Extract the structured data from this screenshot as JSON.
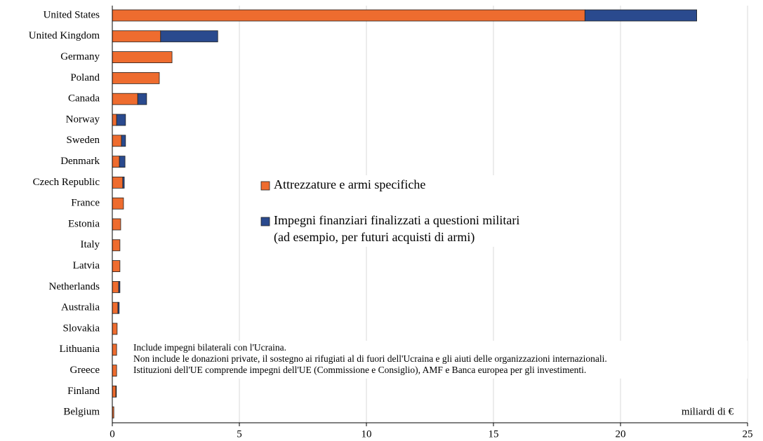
{
  "chart_data": {
    "type": "bar",
    "orientation": "horizontal",
    "stacked": true,
    "categories": [
      "United States",
      "United Kingdom",
      "Germany",
      "Poland",
      "Canada",
      "Norway",
      "Sweden",
      "Denmark",
      "Czech Republic",
      "France",
      "Estonia",
      "Italy",
      "Latvia",
      "Netherlands",
      "Australia",
      "Slovakia",
      "Lithuania",
      "Greece",
      "Finland",
      "Belgium"
    ],
    "series": [
      {
        "name": "Attrezzature e armi specifiche",
        "color": "#ee6c2f",
        "values": [
          18.6,
          1.9,
          2.35,
          1.85,
          1.0,
          0.17,
          0.36,
          0.28,
          0.41,
          0.44,
          0.33,
          0.3,
          0.3,
          0.25,
          0.22,
          0.19,
          0.17,
          0.17,
          0.14,
          0.06
        ]
      },
      {
        "name": "Impegni finanziari finalizzati a questioni militari (ad esempio, per futuri acquisti di armi)",
        "legend_lines": [
          "Impegni finanziari finalizzati a questioni militari",
          "(ad esempio, per futuri acquisti di armi)"
        ],
        "color": "#2a4a8e",
        "values": [
          4.4,
          2.25,
          0,
          0,
          0.35,
          0.35,
          0.16,
          0.22,
          0.06,
          0,
          0,
          0,
          0,
          0.05,
          0.05,
          0,
          0,
          0,
          0.02,
          0
        ]
      }
    ],
    "xlim": [
      0,
      25
    ],
    "xticks": [
      0,
      5,
      10,
      15,
      20,
      25
    ],
    "grid": true,
    "xlabel": "miliardi di €",
    "notes": [
      "Include impegni bilaterali con l'Ucraina.",
      "Non include le donazioni private, il sostegno ai rifugiati al di fuori dell'Ucraina e gli aiuti delle organizzazioni internazionali.",
      "Istituzioni dell'UE comprende impegni dell'UE (Commissione e Consiglio), AMF e Banca europea per gli investimenti."
    ]
  }
}
